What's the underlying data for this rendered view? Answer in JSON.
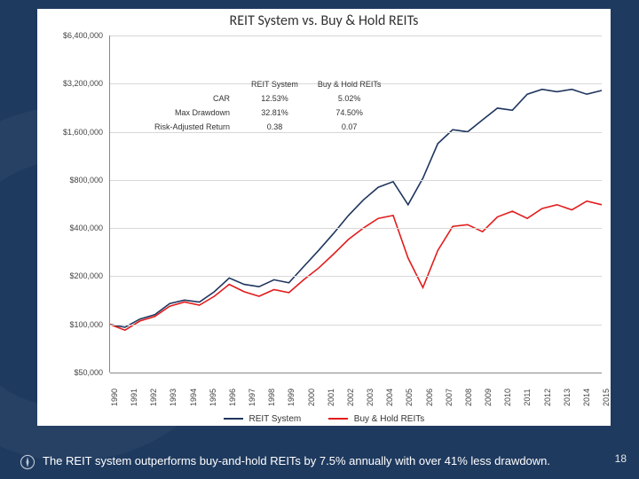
{
  "background_color": "#1f3a5f",
  "panel_bg": "#ffffff",
  "title": "REIT System vs. Buy & Hold REITs",
  "title_fontsize": 16,
  "stats": {
    "col_headers": [
      "REIT System",
      "Buy & Hold REITs"
    ],
    "rows": [
      {
        "label": "CAR",
        "a": "12.53%",
        "b": "5.02%"
      },
      {
        "label": "Max Drawdown",
        "a": "32.81%",
        "b": "74.50%"
      },
      {
        "label": "Risk-Adjusted Return",
        "a": "0.38",
        "b": "0.07"
      }
    ]
  },
  "chart": {
    "type": "line",
    "yscale": "log",
    "ylim_min": 50000,
    "ylim_max": 6400000,
    "yticks": [
      50000,
      100000,
      200000,
      400000,
      800000,
      1600000,
      3200000,
      6400000
    ],
    "ytick_labels": [
      "$50,000",
      "$100,000",
      "$200,000",
      "$400,000",
      "$800,000",
      "$1,600,000",
      "$3,200,000",
      "$6,400,000"
    ],
    "xticks": [
      "1990",
      "1991",
      "1992",
      "1993",
      "1994",
      "1995",
      "1996",
      "1997",
      "1998",
      "1999",
      "2000",
      "2001",
      "2002",
      "2003",
      "2004",
      "2005",
      "2006",
      "2007",
      "2008",
      "2009",
      "2010",
      "2011",
      "2012",
      "2013",
      "2014",
      "2015"
    ],
    "grid_color": "#d8d8d8",
    "series": [
      {
        "name": "REIT System",
        "color": "#1f355e",
        "line_width": 1.6,
        "values": [
          100000,
          96000,
          108000,
          115000,
          135000,
          142000,
          138000,
          160000,
          195000,
          178000,
          172000,
          190000,
          182000,
          230000,
          290000,
          370000,
          480000,
          600000,
          720000,
          780000,
          560000,
          820000,
          1350000,
          1650000,
          1600000,
          1900000,
          2250000,
          2180000,
          2750000,
          2950000,
          2850000,
          2950000,
          2750000,
          2900000
        ]
      },
      {
        "name": "Buy & Hold REITs",
        "color": "#e21c1c",
        "line_width": 1.6,
        "values": [
          100000,
          92000,
          105000,
          112000,
          130000,
          138000,
          132000,
          150000,
          178000,
          160000,
          150000,
          165000,
          158000,
          190000,
          225000,
          275000,
          340000,
          400000,
          460000,
          480000,
          260000,
          170000,
          290000,
          410000,
          420000,
          380000,
          470000,
          510000,
          460000,
          530000,
          560000,
          520000,
          590000,
          560000
        ]
      }
    ],
    "legend": {
      "position": "bottom"
    }
  },
  "caption": "The REIT system outperforms buy-and-hold REITs by 7.5% annually with over 41% less drawdown.",
  "page_number": "18",
  "icon_name": "compass-icon"
}
